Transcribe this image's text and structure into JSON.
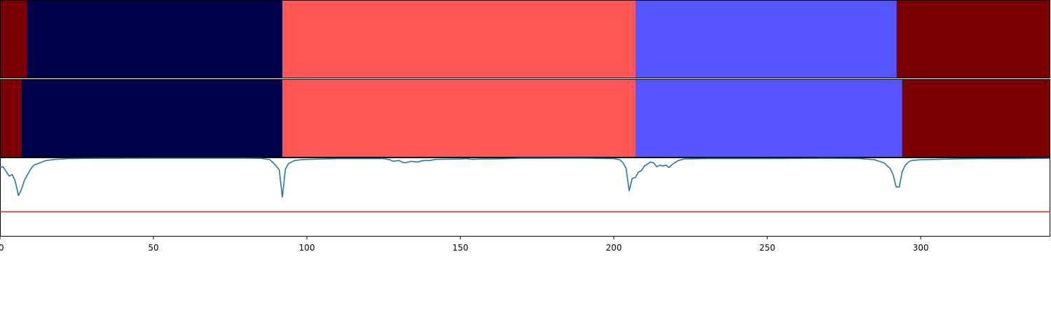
{
  "chart_data": [
    {
      "type": "heatmap",
      "panel": "segments-row-1",
      "xlim": [
        0,
        342
      ],
      "segments": [
        {
          "start": 0,
          "end": 8.7,
          "color": "#7a0000"
        },
        {
          "start": 8.7,
          "end": 92,
          "color": "#000048"
        },
        {
          "start": 92,
          "end": 207,
          "color": "#ff5555"
        },
        {
          "start": 207,
          "end": 292.1,
          "color": "#5555ff"
        },
        {
          "start": 292.1,
          "end": 342,
          "color": "#7a0000"
        }
      ]
    },
    {
      "type": "heatmap",
      "panel": "segments-row-2",
      "xlim": [
        0,
        342
      ],
      "segments": [
        {
          "start": 0,
          "end": 6.9,
          "color": "#7a0000"
        },
        {
          "start": 6.9,
          "end": 92,
          "color": "#000048"
        },
        {
          "start": 92,
          "end": 207,
          "color": "#ff5555"
        },
        {
          "start": 207,
          "end": 293.9,
          "color": "#5555ff"
        },
        {
          "start": 293.9,
          "end": 342,
          "color": "#7a0000"
        }
      ]
    },
    {
      "type": "line",
      "panel": "signal",
      "xlim": [
        0,
        342
      ],
      "ylim": [
        0,
        1
      ],
      "xticks": [
        0,
        50,
        100,
        150,
        200,
        250,
        300
      ],
      "xtick_labels": [
        "0",
        "50",
        "100",
        "150",
        "200",
        "250",
        "300"
      ],
      "threshold": {
        "value": 0.31,
        "color": "#d62728"
      },
      "series": [
        {
          "color": "#1f77b4",
          "points": [
            [
              0,
              0.88
            ],
            [
              1,
              0.89
            ],
            [
              2,
              0.83
            ],
            [
              3,
              0.77
            ],
            [
              4,
              0.79
            ],
            [
              5,
              0.7
            ],
            [
              6,
              0.52
            ],
            [
              7,
              0.6
            ],
            [
              8,
              0.72
            ],
            [
              9,
              0.79
            ],
            [
              10,
              0.86
            ],
            [
              11,
              0.91
            ],
            [
              13,
              0.94
            ],
            [
              15,
              0.97
            ],
            [
              18,
              0.985
            ],
            [
              21,
              0.99
            ],
            [
              22,
              0.995
            ],
            [
              30,
              0.998
            ],
            [
              50,
              1.0
            ],
            [
              80,
              1.0
            ],
            [
              85,
              0.998
            ],
            [
              88,
              0.98
            ],
            [
              90,
              0.9
            ],
            [
              91,
              0.85
            ],
            [
              92,
              0.5
            ],
            [
              93,
              0.86
            ],
            [
              94,
              0.93
            ],
            [
              95,
              0.95
            ],
            [
              96,
              0.97
            ],
            [
              98,
              0.98
            ],
            [
              100,
              0.985
            ],
            [
              110,
              0.995
            ],
            [
              120,
              0.995
            ],
            [
              125,
              0.995
            ],
            [
              127,
              0.98
            ],
            [
              128,
              0.96
            ],
            [
              130,
              0.97
            ],
            [
              131,
              0.95
            ],
            [
              132,
              0.94
            ],
            [
              134,
              0.96
            ],
            [
              136,
              0.95
            ],
            [
              138,
              0.97
            ],
            [
              140,
              0.97
            ],
            [
              142,
              0.985
            ],
            [
              150,
              0.99
            ],
            [
              152,
              0.995
            ],
            [
              154,
              0.985
            ],
            [
              156,
              0.99
            ],
            [
              160,
              0.99
            ],
            [
              170,
              0.999
            ],
            [
              190,
              1.0
            ],
            [
              200,
              0.995
            ],
            [
              202,
              0.98
            ],
            [
              203,
              0.94
            ],
            [
              204,
              0.87
            ],
            [
              205,
              0.58
            ],
            [
              206,
              0.74
            ],
            [
              207,
              0.75
            ],
            [
              208,
              0.82
            ],
            [
              209,
              0.84
            ],
            [
              210,
              0.9
            ],
            [
              212,
              0.95
            ],
            [
              213,
              0.94
            ],
            [
              214,
              0.89
            ],
            [
              215,
              0.91
            ],
            [
              216,
              0.9
            ],
            [
              217,
              0.91
            ],
            [
              218,
              0.88
            ],
            [
              219,
              0.92
            ],
            [
              221,
              0.97
            ],
            [
              223,
              0.99
            ],
            [
              230,
              0.995
            ],
            [
              250,
              0.995
            ],
            [
              270,
              0.998
            ],
            [
              280,
              0.996
            ],
            [
              285,
              0.98
            ],
            [
              288,
              0.94
            ],
            [
              290,
              0.87
            ],
            [
              291,
              0.79
            ],
            [
              292,
              0.63
            ],
            [
              293,
              0.63
            ],
            [
              294,
              0.83
            ],
            [
              295,
              0.91
            ],
            [
              296,
              0.95
            ],
            [
              297,
              0.97
            ],
            [
              300,
              0.98
            ],
            [
              305,
              0.985
            ],
            [
              310,
              0.99
            ],
            [
              320,
              0.995
            ],
            [
              330,
              0.995
            ],
            [
              340,
              0.998
            ],
            [
              342,
              0.999
            ]
          ]
        }
      ]
    }
  ]
}
